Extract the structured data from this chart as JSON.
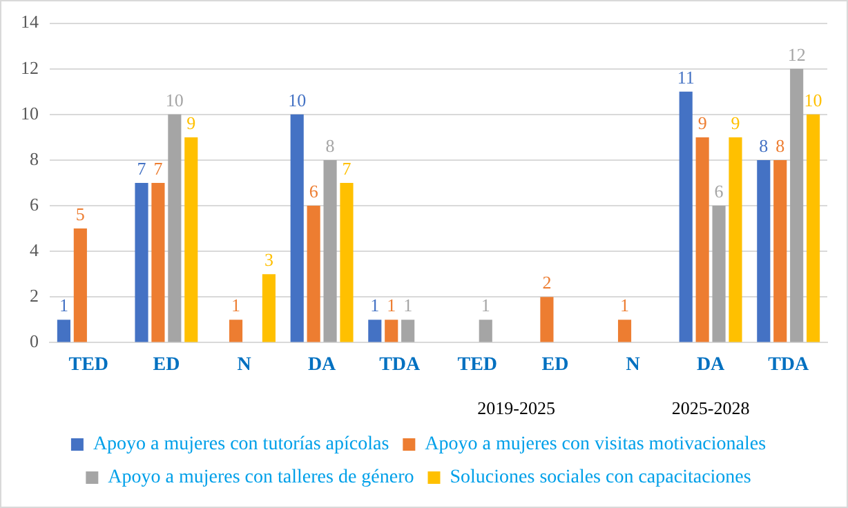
{
  "chart_data": {
    "type": "bar",
    "categories": [
      "TED",
      "ED",
      "N",
      "DA",
      "TDA",
      "TED",
      "ED",
      "N",
      "DA",
      "TDA"
    ],
    "series": [
      {
        "name": "Apoyo a mujeres con tutorías apícolas",
        "color": "#4472c4",
        "values": [
          1,
          7,
          null,
          10,
          1,
          null,
          null,
          null,
          11,
          8
        ]
      },
      {
        "name": "Apoyo a mujeres con visitas motivacionales",
        "color": "#ed7d31",
        "values": [
          5,
          7,
          1,
          6,
          1,
          null,
          2,
          1,
          9,
          8
        ]
      },
      {
        "name": "Apoyo a mujeres con talleres de género",
        "color": "#a5a5a5",
        "values": [
          null,
          10,
          null,
          8,
          1,
          1,
          null,
          null,
          6,
          12
        ]
      },
      {
        "name": "Soluciones sociales con capacitaciones",
        "color": "#ffc000",
        "values": [
          null,
          9,
          3,
          7,
          null,
          null,
          null,
          null,
          9,
          10
        ]
      }
    ],
    "annotations": [
      "2019-2025",
      "2025-2028"
    ],
    "ylim": [
      0,
      14
    ],
    "yticks": [
      0,
      2,
      4,
      6,
      8,
      10,
      12,
      14
    ],
    "grid": "y",
    "legend": "bottom",
    "data_labels": true
  }
}
